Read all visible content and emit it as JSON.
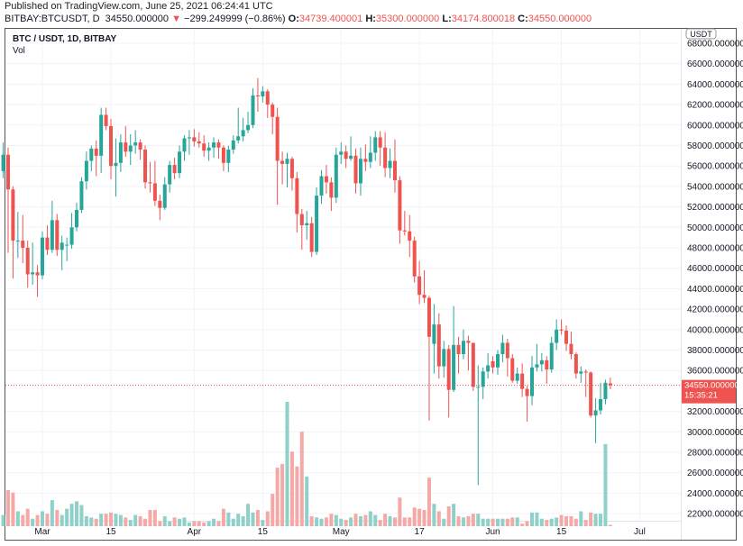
{
  "header": {
    "published": "Published on TradingView.com, June 25, 2021 06:24:41 UTC",
    "symbol": "BITBAY:BTCUSDT, D",
    "last": "34550.000000",
    "change_icon": "triangle-down-icon",
    "change": "−299.249999 (−0.86%)",
    "o_label": "O:",
    "o": "34739.400001",
    "h_label": "H:",
    "h": "35300.000000",
    "l_label": "L:",
    "l": "34174.800018",
    "c_label": "C:",
    "c": "34550.000000"
  },
  "legend": {
    "title": "BTC / USDT, 1D, BITBAY",
    "vol": "Vol"
  },
  "currency": "USDT",
  "last_price_tag": {
    "price": "34550.000000",
    "countdown": "15:35:21"
  },
  "colors": {
    "up": "#26a69a",
    "down": "#ef5350",
    "up_vol": "#8fd1c9",
    "down_vol": "#f5a9a7",
    "grid": "#f0f3fa"
  },
  "chart_data": {
    "type": "candlestick",
    "title": "BTC / USDT, 1D, BITBAY",
    "ylim": [
      21000,
      68500
    ],
    "y_ticks": [
      "68000.000000",
      "66000.000000",
      "64000.000000",
      "62000.000000",
      "60000.000000",
      "58000.000000",
      "56000.000000",
      "54000.000000",
      "52000.000000",
      "50000.000000",
      "48000.000000",
      "46000.000000",
      "44000.000000",
      "42000.000000",
      "40000.000000",
      "38000.000000",
      "36000.000000",
      "32000.000000",
      "30000.000000",
      "28000.000000",
      "26000.000000",
      "24000.000000",
      "22000.000000"
    ],
    "x_ticks": [
      {
        "label": "Mar",
        "date": "2021-03-01"
      },
      {
        "label": "15",
        "date": "2021-03-15"
      },
      {
        "label": "Apr",
        "date": "2021-04-01"
      },
      {
        "label": "15",
        "date": "2021-04-15"
      },
      {
        "label": "May",
        "date": "2021-05-01"
      },
      {
        "label": "17",
        "date": "2021-05-17"
      },
      {
        "label": "Jun",
        "date": "2021-06-01"
      },
      {
        "label": "15",
        "date": "2021-06-15"
      },
      {
        "label": "Jul",
        "date": "2021-07-01"
      }
    ],
    "grid": true,
    "volume_scale": "relative (max = 100)",
    "columns": [
      "date",
      "open",
      "high",
      "low",
      "close",
      "volume"
    ],
    "candles": [
      [
        "2021-02-21",
        55500,
        58300,
        54800,
        57100,
        9
      ],
      [
        "2021-02-22",
        57100,
        57800,
        47500,
        53700,
        29
      ],
      [
        "2021-02-23",
        53700,
        54000,
        45000,
        48700,
        27
      ],
      [
        "2021-02-24",
        48700,
        51500,
        47000,
        48700,
        12
      ],
      [
        "2021-02-25",
        48700,
        51200,
        46500,
        48000,
        9
      ],
      [
        "2021-02-26",
        48000,
        48700,
        44100,
        45400,
        14
      ],
      [
        "2021-02-27",
        45400,
        48500,
        44400,
        45600,
        6
      ],
      [
        "2021-02-28",
        45600,
        46300,
        43200,
        45300,
        9
      ],
      [
        "2021-03-01",
        45300,
        49600,
        44900,
        49000,
        12
      ],
      [
        "2021-03-02",
        49000,
        50200,
        47300,
        47800,
        10
      ],
      [
        "2021-03-03",
        47800,
        52600,
        47500,
        50700,
        21
      ],
      [
        "2021-03-04",
        50700,
        51300,
        47200,
        47800,
        13
      ],
      [
        "2021-03-05",
        47800,
        49200,
        45800,
        48500,
        9
      ],
      [
        "2021-03-06",
        48300,
        49000,
        46700,
        48300,
        14
      ],
      [
        "2021-03-07",
        48300,
        51400,
        47900,
        50000,
        18
      ],
      [
        "2021-03-08",
        50000,
        52400,
        49600,
        51700,
        20
      ],
      [
        "2021-03-09",
        51700,
        54900,
        51400,
        54500,
        17
      ],
      [
        "2021-03-10",
        54500,
        57400,
        53700,
        56500,
        8
      ],
      [
        "2021-03-11",
        56500,
        58000,
        55500,
        57700,
        7
      ],
      [
        "2021-03-12",
        57700,
        58500,
        55000,
        57000,
        6
      ],
      [
        "2021-03-13",
        57000,
        61700,
        55300,
        61000,
        10
      ],
      [
        "2021-03-14",
        61000,
        61700,
        59500,
        59900,
        10
      ],
      [
        "2021-03-15",
        59900,
        60600,
        54700,
        56000,
        11
      ],
      [
        "2021-03-16",
        56000,
        58700,
        53000,
        56300,
        10
      ],
      [
        "2021-03-17",
        56300,
        59100,
        55400,
        58300,
        9
      ],
      [
        "2021-03-18",
        58300,
        59900,
        56900,
        57400,
        7
      ],
      [
        "2021-03-19",
        57400,
        59100,
        56100,
        58000,
        5
      ],
      [
        "2021-03-20",
        58000,
        59500,
        57200,
        58300,
        9
      ],
      [
        "2021-03-21",
        58300,
        58600,
        56600,
        57600,
        8
      ],
      [
        "2021-03-22",
        57600,
        58000,
        53800,
        54400,
        6
      ],
      [
        "2021-03-23",
        54400,
        56400,
        53400,
        54300,
        13
      ],
      [
        "2021-03-24",
        54300,
        56500,
        52100,
        52600,
        13
      ],
      [
        "2021-03-25",
        52600,
        53200,
        50700,
        51900,
        4
      ],
      [
        "2021-03-26",
        51900,
        54900,
        51700,
        54200,
        8
      ],
      [
        "2021-03-27",
        54200,
        56500,
        53400,
        56100,
        4
      ],
      [
        "2021-03-28",
        56100,
        56800,
        54700,
        55300,
        7
      ],
      [
        "2021-03-29",
        55300,
        58000,
        54800,
        57400,
        6
      ],
      [
        "2021-03-30",
        57400,
        59000,
        56500,
        58700,
        7
      ],
      [
        "2021-03-31",
        58700,
        59500,
        57100,
        58800,
        3
      ],
      [
        "2021-04-01",
        58800,
        59600,
        57900,
        58400,
        4
      ],
      [
        "2021-04-02",
        58400,
        59300,
        57800,
        58200,
        4
      ],
      [
        "2021-04-03",
        58200,
        59000,
        56900,
        57500,
        3
      ],
      [
        "2021-04-04",
        57500,
        58300,
        56500,
        57800,
        4
      ],
      [
        "2021-04-05",
        57800,
        58800,
        56800,
        58300,
        6
      ],
      [
        "2021-04-06",
        58300,
        58600,
        56700,
        57800,
        4
      ],
      [
        "2021-04-07",
        57800,
        58000,
        55500,
        56300,
        14
      ],
      [
        "2021-04-08",
        56300,
        58000,
        55400,
        57600,
        11
      ],
      [
        "2021-04-09",
        57600,
        59000,
        57200,
        58500,
        6
      ],
      [
        "2021-04-10",
        58500,
        61700,
        58200,
        58900,
        10
      ],
      [
        "2021-04-11",
        58900,
        60700,
        58400,
        59500,
        8
      ],
      [
        "2021-04-12",
        59500,
        61300,
        59200,
        60000,
        18
      ],
      [
        "2021-04-13",
        60000,
        63600,
        59700,
        62900,
        11
      ],
      [
        "2021-04-14",
        62900,
        64600,
        61300,
        62800,
        13
      ],
      [
        "2021-04-15",
        62800,
        63800,
        62200,
        63300,
        5
      ],
      [
        "2021-04-16",
        63300,
        63500,
        60700,
        62000,
        12
      ],
      [
        "2021-04-17",
        62000,
        62200,
        59100,
        60800,
        26
      ],
      [
        "2021-04-18",
        60800,
        61700,
        52200,
        56500,
        47
      ],
      [
        "2021-04-19",
        56500,
        57400,
        54200,
        56200,
        50
      ],
      [
        "2021-04-20",
        56200,
        57300,
        53900,
        56700,
        100
      ],
      [
        "2021-04-21",
        56700,
        56900,
        53600,
        54800,
        60
      ],
      [
        "2021-04-22",
        54800,
        55400,
        49500,
        51300,
        48
      ],
      [
        "2021-04-23",
        51300,
        51800,
        47800,
        50200,
        76
      ],
      [
        "2021-04-24",
        50200,
        51600,
        48800,
        50400,
        40
      ],
      [
        "2021-04-25",
        50400,
        51000,
        47100,
        47600,
        8
      ],
      [
        "2021-04-26",
        47600,
        53900,
        47300,
        53100,
        7
      ],
      [
        "2021-04-27",
        53100,
        55600,
        52300,
        55000,
        6
      ],
      [
        "2021-04-28",
        55000,
        56100,
        53300,
        54400,
        7
      ],
      [
        "2021-04-29",
        54400,
        54900,
        51600,
        52900,
        10
      ],
      [
        "2021-04-30",
        52900,
        57800,
        52400,
        57100,
        9
      ],
      [
        "2021-05-01",
        57100,
        58300,
        56200,
        57400,
        6
      ],
      [
        "2021-05-02",
        57400,
        58000,
        55800,
        56700,
        5
      ],
      [
        "2021-05-03",
        56700,
        58900,
        56500,
        57000,
        7
      ],
      [
        "2021-05-04",
        57000,
        57700,
        53300,
        54300,
        10
      ],
      [
        "2021-05-05",
        54300,
        57800,
        53100,
        56700,
        8
      ],
      [
        "2021-05-06",
        56700,
        58100,
        55500,
        56400,
        9
      ],
      [
        "2021-05-07",
        56400,
        58900,
        55800,
        57300,
        12
      ],
      [
        "2021-05-08",
        57300,
        59400,
        56500,
        58800,
        9
      ],
      [
        "2021-05-09",
        58800,
        59400,
        56000,
        57800,
        5
      ],
      [
        "2021-05-10",
        57800,
        59300,
        54900,
        55800,
        10
      ],
      [
        "2021-05-11",
        55800,
        57700,
        54800,
        56500,
        8
      ],
      [
        "2021-05-12",
        56500,
        58600,
        53400,
        54600,
        7
      ],
      [
        "2021-05-13",
        54600,
        55000,
        48400,
        49700,
        23
      ],
      [
        "2021-05-14",
        49700,
        51600,
        49200,
        49600,
        7
      ],
      [
        "2021-05-15",
        49600,
        51200,
        47100,
        48700,
        7
      ],
      [
        "2021-05-16",
        48700,
        49100,
        44600,
        45200,
        15
      ],
      [
        "2021-05-17",
        45200,
        46700,
        42500,
        43400,
        14
      ],
      [
        "2021-05-18",
        43400,
        45800,
        42600,
        43100,
        13
      ],
      [
        "2021-05-19",
        43100,
        43300,
        31100,
        39300,
        39
      ],
      [
        "2021-05-20",
        38600,
        42500,
        35700,
        40500,
        18
      ],
      [
        "2021-05-21",
        40500,
        41600,
        35200,
        36400,
        12
      ],
      [
        "2021-05-22",
        36400,
        38900,
        35300,
        38100,
        6
      ],
      [
        "2021-05-23",
        38100,
        38500,
        31400,
        34100,
        16
      ],
      [
        "2021-05-24",
        34100,
        42300,
        33900,
        38500,
        18
      ],
      [
        "2021-05-25",
        38500,
        39300,
        35700,
        37600,
        8
      ],
      [
        "2021-05-26",
        37600,
        40000,
        37100,
        38900,
        7
      ],
      [
        "2021-05-27",
        38900,
        39400,
        36000,
        38700,
        8
      ],
      [
        "2021-05-28",
        38700,
        38700,
        34000,
        34400,
        10
      ],
      [
        "2021-05-29",
        34400,
        36500,
        24800,
        34400,
        10
      ],
      [
        "2021-05-30",
        34400,
        36300,
        33200,
        35900,
        6
      ],
      [
        "2021-05-31",
        35900,
        37700,
        35200,
        36500,
        6
      ],
      [
        "2021-06-01",
        36900,
        37400,
        35700,
        36300,
        6
      ],
      [
        "2021-06-02",
        36300,
        38000,
        35600,
        37600,
        6
      ],
      [
        "2021-06-03",
        37600,
        39500,
        36800,
        38700,
        6
      ],
      [
        "2021-06-04",
        38700,
        39100,
        35400,
        37200,
        6
      ],
      [
        "2021-06-05",
        37200,
        37600,
        34800,
        35000,
        7
      ],
      [
        "2021-06-06",
        35000,
        36300,
        34700,
        35700,
        7
      ],
      [
        "2021-06-07",
        35700,
        36700,
        33400,
        34200,
        2
      ],
      [
        "2021-06-08",
        34200,
        34500,
        31000,
        33500,
        4
      ],
      [
        "2021-06-09",
        33500,
        37400,
        32600,
        36300,
        11
      ],
      [
        "2021-06-10",
        36300,
        38600,
        35900,
        36600,
        11
      ],
      [
        "2021-06-11",
        36600,
        37700,
        35900,
        37000,
        6
      ],
      [
        "2021-06-12",
        37000,
        37400,
        34700,
        36100,
        5
      ],
      [
        "2021-06-13",
        36100,
        39300,
        35800,
        38700,
        6
      ],
      [
        "2021-06-14",
        38700,
        41000,
        38000,
        40000,
        7
      ],
      [
        "2021-06-15",
        40000,
        41000,
        39500,
        39900,
        9
      ],
      [
        "2021-06-16",
        39900,
        40400,
        37900,
        38600,
        8
      ],
      [
        "2021-06-17",
        38600,
        39800,
        37100,
        37600,
        8
      ],
      [
        "2021-06-18",
        37600,
        37800,
        35200,
        35700,
        6
      ],
      [
        "2021-06-19",
        35700,
        36400,
        34800,
        35900,
        12
      ],
      [
        "2021-06-20",
        35900,
        36100,
        33400,
        35800,
        5
      ],
      [
        "2021-06-21",
        35800,
        35900,
        31400,
        31600,
        11
      ],
      [
        "2021-06-22",
        31600,
        33300,
        28900,
        32100,
        10
      ],
      [
        "2021-06-23",
        32100,
        34800,
        31700,
        33200,
        10
      ],
      [
        "2021-06-24",
        33200,
        35100,
        32700,
        34800,
        66
      ],
      [
        "2021-06-25",
        34739.4,
        35300,
        34174.8,
        34550,
        1
      ]
    ]
  }
}
